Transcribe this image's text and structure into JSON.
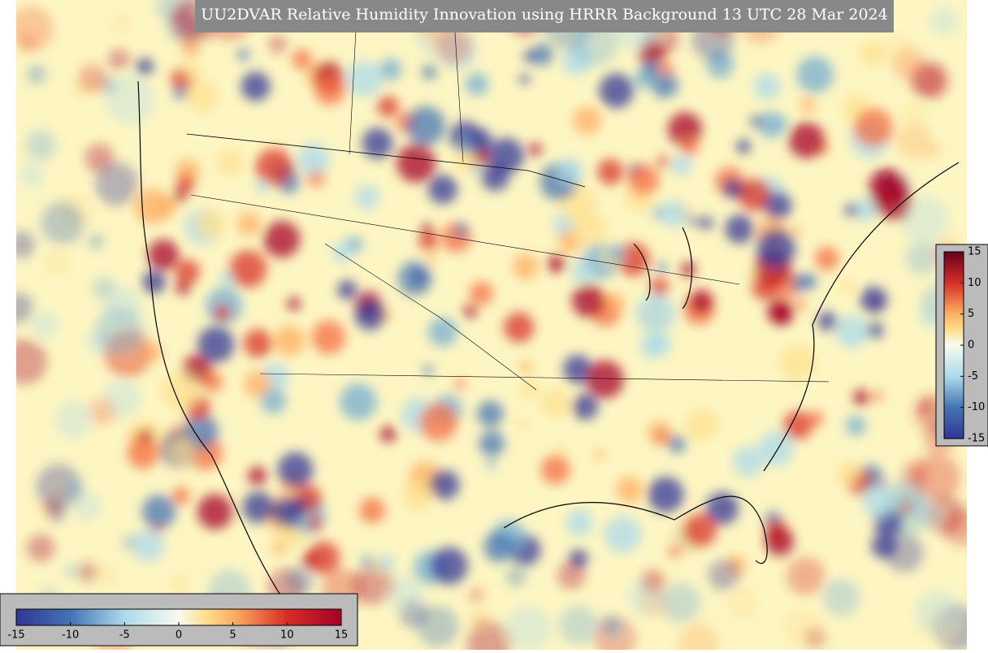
{
  "title": "UU2DVAR Relative Humidity Innovation using HRRR Background 13 UTC 28 Mar 2024",
  "colorbars": [
    {
      "orientation": "horizontal",
      "lim": [
        -15,
        15
      ],
      "ticks": [
        -15,
        -10,
        -5,
        0,
        5,
        10,
        15
      ]
    },
    {
      "orientation": "vertical",
      "lim": [
        -15,
        15
      ],
      "ticks": [
        15,
        10,
        5,
        0,
        -5,
        -10,
        -15
      ]
    }
  ]
}
